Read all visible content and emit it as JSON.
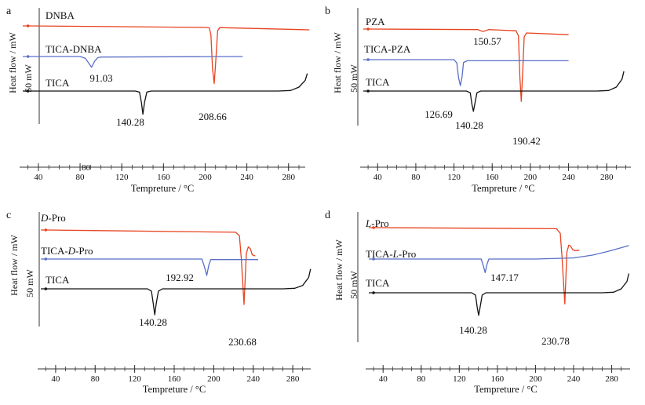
{
  "chart_data": [
    {
      "type": "line",
      "panel_label": "a",
      "xlabel": "Tempreture / °C",
      "ylabel": "Heat flow / mW",
      "scale_label": "50 mW",
      "xlim": [
        25,
        300
      ],
      "ticks": [
        "40",
        "80",
        "120",
        "160",
        "200",
        "240",
        "280"
      ],
      "tick_values": [
        40,
        80,
        120,
        160,
        200,
        240,
        280
      ],
      "stray_tick": {
        "label": "80",
        "value": 88
      },
      "series": [
        {
          "name": "DNBA",
          "color": "#e8431f",
          "x": [
            25,
            30,
            200,
            204,
            205.5,
            207,
            208.66,
            210,
            212,
            214,
            300
          ],
          "y": [
            30,
            30,
            27.3,
            26.5,
            14,
            -45,
            -72,
            -38,
            22,
            27,
            23
          ]
        },
        {
          "name": "TICA-DNBA",
          "color": "#5a6fc8",
          "x": [
            25,
            30,
            80,
            85,
            88,
            91.03,
            94,
            97,
            100,
            236
          ],
          "y": [
            1,
            1,
            1,
            -2,
            -10,
            -18,
            -7,
            -1,
            0,
            1
          ]
        },
        {
          "name": "TICA",
          "color": "#111111",
          "x": [
            25,
            30,
            133,
            137,
            138.8,
            140.28,
            141.8,
            144,
            148,
            270,
            282,
            290,
            296,
            298
          ],
          "y": [
            -35,
            -35,
            -35,
            -37,
            -55,
            -76,
            -55,
            -37,
            -35,
            -35,
            -34,
            -28,
            -16,
            -4
          ]
        }
      ],
      "peak_labels": [
        {
          "text": "91.03",
          "x": 91.03
        },
        {
          "text": "140.28",
          "x": 140.28
        },
        {
          "text": "208.66",
          "x": 208.66
        }
      ]
    },
    {
      "type": "line",
      "panel_label": "b",
      "xlabel": "Tempreture / °C",
      "ylabel": "Heat flow / mW",
      "scale_label": "50 mW",
      "xlim": [
        25,
        300
      ],
      "ticks": [
        "40",
        "80",
        "120",
        "160",
        "200",
        "240",
        "280"
      ],
      "tick_values": [
        40,
        80,
        120,
        160,
        200,
        240,
        280
      ],
      "series": [
        {
          "name": "PZA",
          "color": "#e8431f",
          "x": [
            25,
            30,
            145,
            148,
            150.57,
            153,
            156,
            185,
            187.5,
            189,
            190.42,
            192,
            193.5,
            196,
            240
          ],
          "y": [
            34,
            34,
            33,
            31,
            29.8,
            31,
            33,
            31,
            22,
            -50,
            -94,
            -40,
            20,
            27,
            24
          ]
        },
        {
          "name": "TICA-PZA",
          "color": "#5a6fc8",
          "x": [
            25,
            30,
            120,
            123,
            124.8,
            126.69,
            128.5,
            130,
            134,
            240
          ],
          "y": [
            2,
            2,
            2,
            -4,
            -30,
            -44,
            -28,
            -3,
            0,
            0
          ]
        },
        {
          "name": "TICA",
          "color": "#111111",
          "x": [
            25,
            30,
            133,
            137,
            138.8,
            140.28,
            141.8,
            144,
            148,
            270,
            282,
            290,
            296,
            298
          ],
          "y": [
            -37,
            -37,
            -37,
            -40,
            -60,
            -73,
            -60,
            -40,
            -37,
            -37,
            -36,
            -30,
            -16,
            -2
          ]
        }
      ],
      "peak_labels": [
        {
          "text": "150.57",
          "x": 150.57
        },
        {
          "text": "126.69",
          "x": 126.69
        },
        {
          "text": "140.28",
          "x": 140.28
        },
        {
          "text": "190.42",
          "x": 190.42
        }
      ]
    },
    {
      "type": "line",
      "panel_label": "c",
      "xlabel": "Tempreture / °C",
      "ylabel": "Heat flow / mW",
      "scale_label": "50 mW",
      "xlim": [
        25,
        300
      ],
      "ticks": [
        "40",
        "80",
        "120",
        "160",
        "200",
        "240",
        "280"
      ],
      "tick_values": [
        40,
        80,
        120,
        160,
        200,
        240,
        280
      ],
      "series": [
        {
          "name": "D-Pro",
          "name_italic": "D",
          "name_rest": "-Pro",
          "color": "#e8431f",
          "x": [
            25,
            30,
            222,
            226,
            228,
            230.68,
            233,
            235,
            237,
            239,
            242
          ],
          "y": [
            32,
            32,
            28,
            22,
            -20,
            -100,
            -10,
            2,
            -1,
            -12,
            -14
          ]
        },
        {
          "name": "TICA-D-Pro",
          "name_italic": "D",
          "name_prefix": "TICA-",
          "name_rest": "-Pro",
          "color": "#5a6fc8",
          "x": [
            25,
            30,
            188,
            190.5,
            192.92,
            195,
            197,
            245
          ],
          "y": [
            3,
            3,
            3,
            -10,
            -26,
            -8,
            2,
            2
          ]
        },
        {
          "name": "TICA",
          "color": "#111111",
          "x": [
            25,
            30,
            133,
            137,
            138.8,
            140.28,
            141.8,
            144,
            148,
            270,
            282,
            290,
            296,
            298
          ],
          "y": [
            -36,
            -36,
            -36,
            -40,
            -62,
            -82,
            -62,
            -40,
            -36,
            -36,
            -35,
            -30,
            -16,
            -1
          ]
        }
      ],
      "peak_labels": [
        {
          "text": "192.92",
          "x": 192.92
        },
        {
          "text": "140.28",
          "x": 140.28
        },
        {
          "text": "230.68",
          "x": 230.68
        }
      ]
    },
    {
      "type": "line",
      "panel_label": "d",
      "xlabel": "Tempreture / °C",
      "ylabel": "Heat flow / mW",
      "scale_label": "50 mW",
      "xlim": [
        25,
        300
      ],
      "ticks": [
        "40",
        "80",
        "120",
        "160",
        "200",
        "240",
        "280"
      ],
      "tick_values": [
        40,
        80,
        120,
        160,
        200,
        240,
        280
      ],
      "series": [
        {
          "name": "L-Pro",
          "name_italic": "L",
          "name_rest": "-Pro",
          "color": "#e8431f",
          "x": [
            25,
            30,
            222,
            226,
            228,
            230.78,
            233,
            235,
            237,
            239,
            242,
            246
          ],
          "y": [
            35,
            35,
            33,
            25,
            -20,
            -100,
            -8,
            4,
            2,
            -4,
            -6,
            -5
          ]
        },
        {
          "name": "TICA-L-Pro",
          "name_italic": "L",
          "name_prefix": "TICA-",
          "name_rest": "-Pro",
          "color": "#5a6fc8",
          "x": [
            25,
            30,
            143,
            145.2,
            147.17,
            149,
            151,
            200,
            240,
            260,
            275,
            290,
            298
          ],
          "y": [
            -4,
            -4,
            -4,
            -16,
            -28,
            -14,
            -4,
            -4,
            -2,
            3,
            9,
            16,
            20
          ]
        },
        {
          "name": "TICA",
          "color": "#111111",
          "x": [
            25,
            30,
            133,
            137,
            138.8,
            140.28,
            141.8,
            144,
            148,
            270,
            282,
            290,
            296,
            298
          ],
          "y": [
            -40,
            -40,
            -40,
            -44,
            -66,
            -80,
            -66,
            -44,
            -40,
            -40,
            -39,
            -33,
            -20,
            -6
          ]
        }
      ],
      "peak_labels": [
        {
          "text": "147.17",
          "x": 147.17
        },
        {
          "text": "140.28",
          "x": 140.28
        },
        {
          "text": "230.78",
          "x": 230.78
        }
      ]
    }
  ]
}
